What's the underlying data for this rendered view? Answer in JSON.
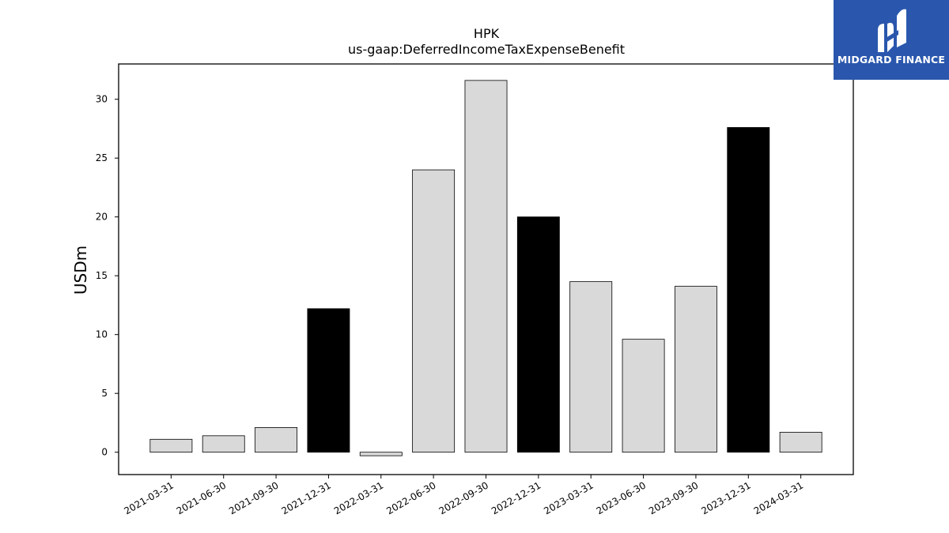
{
  "chart_data": {
    "type": "bar",
    "title": "HPK",
    "subtitle": "us-gaap:DeferredIncomeTaxExpenseBenefit",
    "xlabel": "",
    "ylabel": "USDm",
    "ylim": [
      -1.9,
      33
    ],
    "yticks": [
      0,
      5,
      10,
      15,
      20,
      25,
      30
    ],
    "grid": false,
    "categories": [
      "2021-03-31",
      "2021-06-30",
      "2021-09-30",
      "2021-12-31",
      "2022-03-31",
      "2022-06-30",
      "2022-09-30",
      "2022-12-31",
      "2023-03-31",
      "2023-06-30",
      "2023-09-30",
      "2023-12-31",
      "2024-03-31"
    ],
    "values": [
      1.1,
      1.4,
      2.1,
      12.2,
      -0.3,
      24.0,
      31.6,
      20.0,
      14.5,
      9.6,
      14.1,
      27.6,
      1.7
    ],
    "bar_colors": [
      "#d9d9d9",
      "#d9d9d9",
      "#d9d9d9",
      "#000000",
      "#d9d9d9",
      "#d9d9d9",
      "#d9d9d9",
      "#000000",
      "#d9d9d9",
      "#d9d9d9",
      "#d9d9d9",
      "#000000",
      "#d9d9d9"
    ]
  },
  "logo": {
    "text": "MIDGARD FINANCE",
    "background": "#2a57ad",
    "icon": "midgard-logo-icon"
  }
}
